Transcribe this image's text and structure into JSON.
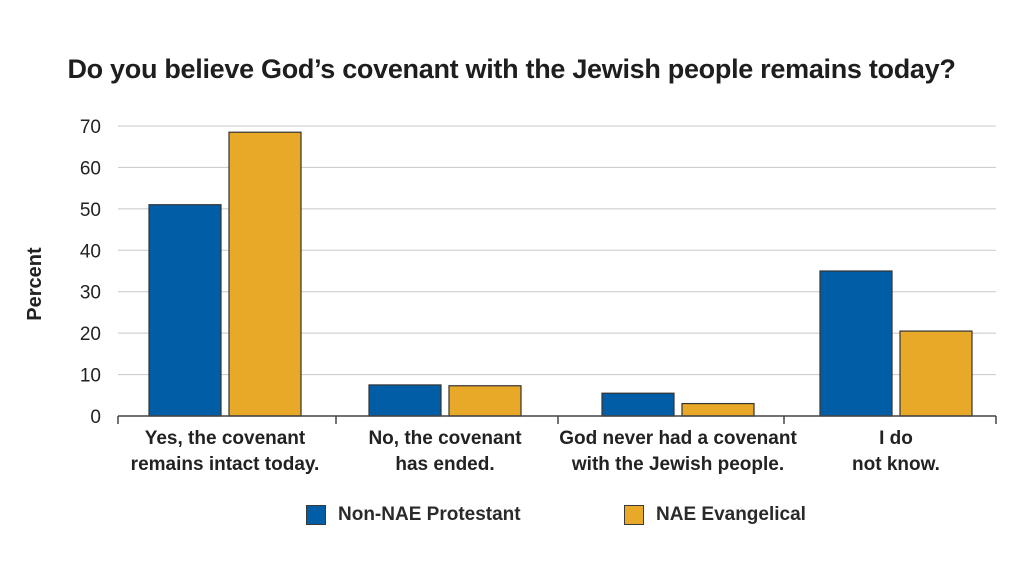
{
  "chart_data": {
    "type": "bar",
    "title": "Do you believe God’s covenant with the Jewish people remains today?",
    "xlabel": "",
    "ylabel": "Percent",
    "ylim": [
      0,
      70
    ],
    "yticks": [
      0,
      10,
      20,
      30,
      40,
      50,
      60,
      70
    ],
    "grid": true,
    "legend_position": "bottom",
    "categories": [
      "Yes, the covenant\nremains intact today.",
      "No, the covenant\nhas ended.",
      "God never had a covenant\nwith the Jewish people.",
      "I do\nnot know."
    ],
    "series": [
      {
        "name": "Non-NAE Protestant",
        "color": "#005da6",
        "values": [
          51,
          7.5,
          5.5,
          35
        ]
      },
      {
        "name": "NAE Evangelical",
        "color": "#e9a928",
        "values": [
          68.5,
          7.3,
          3,
          20.5
        ]
      }
    ]
  }
}
